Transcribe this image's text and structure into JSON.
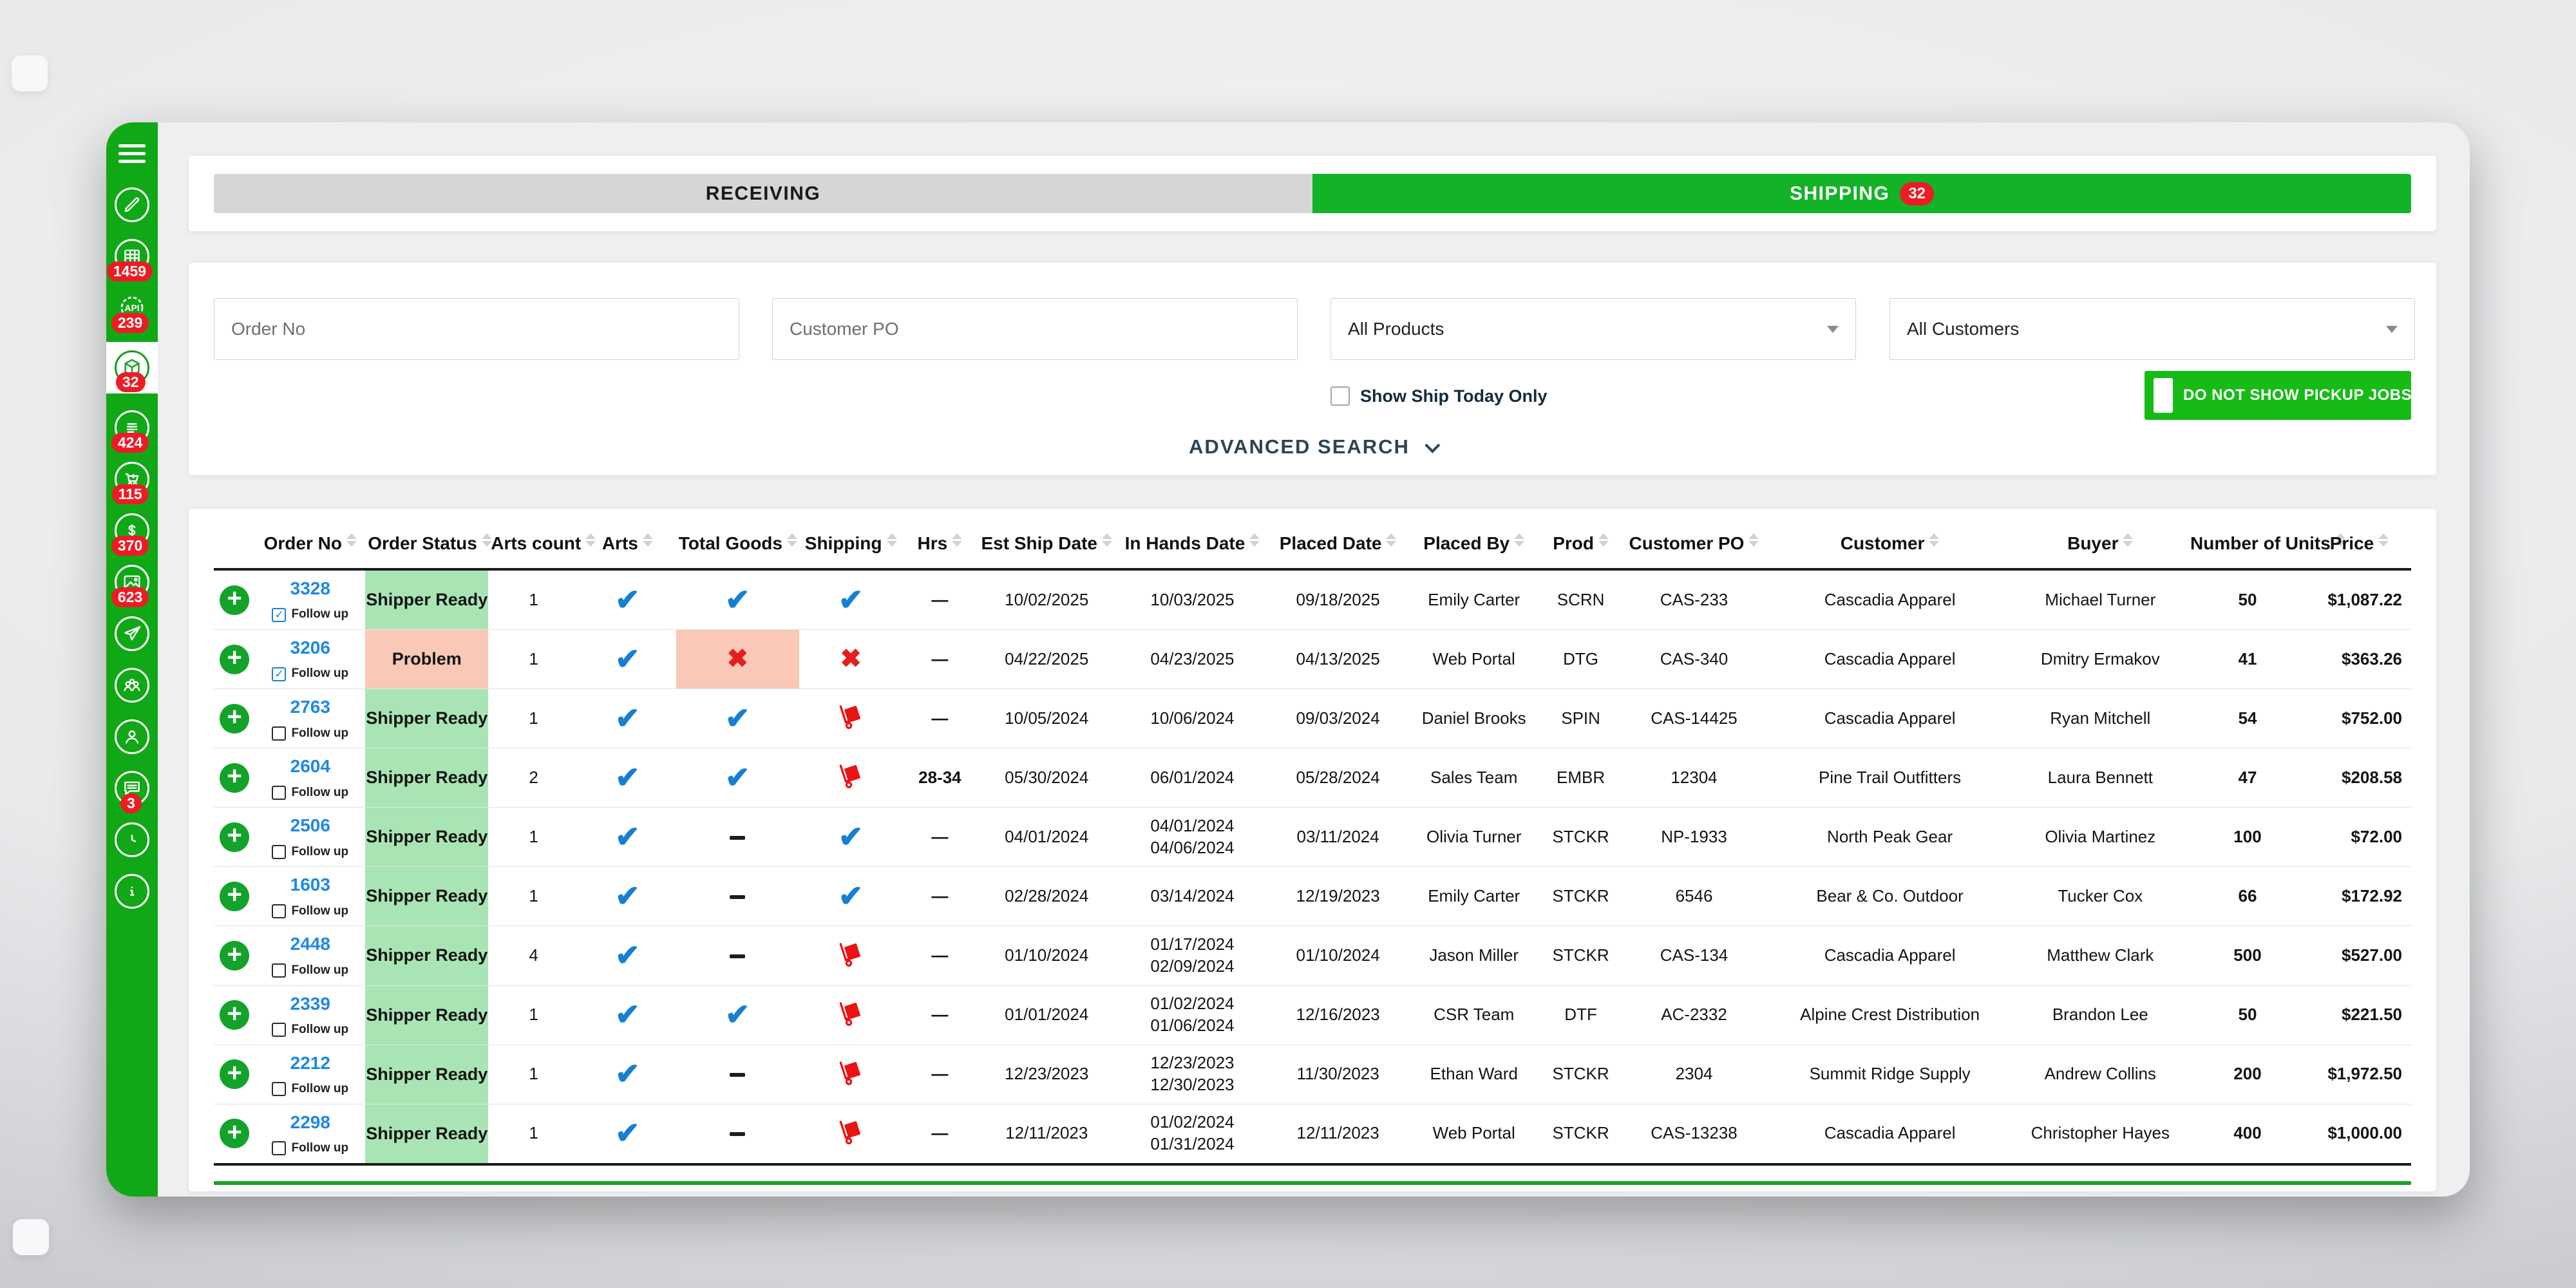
{
  "sidebar": {
    "items": [
      {
        "id": "menu",
        "icon": "menu-icon",
        "badge": null,
        "active": false
      },
      {
        "id": "edit",
        "icon": "pencil-icon",
        "badge": null,
        "active": false
      },
      {
        "id": "spreadsheet",
        "icon": "spreadsheet-icon",
        "badge": "1459",
        "active": false
      },
      {
        "id": "api",
        "icon": "api-gear-icon",
        "badge": "239",
        "active": false
      },
      {
        "id": "shipping",
        "icon": "package-icon",
        "badge": "32",
        "active": true
      },
      {
        "id": "invoices",
        "icon": "invoice-icon",
        "badge": "424",
        "active": false
      },
      {
        "id": "orders",
        "icon": "cart-icon",
        "badge": "115",
        "active": false
      },
      {
        "id": "billing",
        "icon": "dollar-icon",
        "badge": "370",
        "active": false
      },
      {
        "id": "artwork",
        "icon": "image-icon",
        "badge": "623",
        "active": false
      },
      {
        "id": "send",
        "icon": "paper-plane-icon",
        "badge": null,
        "active": false
      },
      {
        "id": "customers",
        "icon": "people-icon",
        "badge": null,
        "active": false
      },
      {
        "id": "account",
        "icon": "person-icon",
        "badge": null,
        "active": false
      },
      {
        "id": "messages",
        "icon": "chat-icon",
        "badge": "3",
        "active": false
      },
      {
        "id": "history",
        "icon": "clock-icon",
        "badge": null,
        "active": false
      },
      {
        "id": "info",
        "icon": "info-icon",
        "badge": null,
        "active": false
      }
    ]
  },
  "tabs": {
    "receiving_label": "RECEIVING",
    "shipping_label": "SHIPPING",
    "shipping_badge": "32"
  },
  "filters": {
    "order_no_placeholder": "Order No",
    "customer_po_placeholder": "Customer PO",
    "products_value": "All Products",
    "customers_value": "All Customers",
    "show_ship_today_label": "Show Ship Today Only",
    "show_ship_today_checked": false,
    "pickup_jobs_label": "DO NOT SHOW PICKUP JOBS",
    "advanced_search_label": "ADVANCED SEARCH"
  },
  "table": {
    "follow_up_label": "Follow up",
    "headers": [
      "Order No",
      "Order Status",
      "Arts count",
      "Arts",
      "Total Goods",
      "Shipping",
      "Hrs",
      "Est Ship Date",
      "In Hands Date",
      "Placed Date",
      "Placed By",
      "Prod",
      "Customer PO",
      "Customer",
      "Buyer",
      "Number of Units",
      "Price"
    ],
    "rows": [
      {
        "order_no": "3328",
        "follow_up": true,
        "status": "Shipper Ready",
        "arts_count": "1",
        "arts": "check",
        "total_goods": "check",
        "shipping": "check",
        "hrs": "—",
        "est_ship_date": "10/02/2025",
        "in_hands_date": [
          "10/03/2025"
        ],
        "placed_date": "09/18/2025",
        "placed_by": "Emily Carter",
        "prod": "SCRN",
        "customer_po": "CAS-233",
        "customer": "Cascadia Apparel",
        "buyer": "Michael Turner",
        "units": "50",
        "price": "$1,087.22"
      },
      {
        "order_no": "3206",
        "follow_up": true,
        "status": "Problem",
        "arts_count": "1",
        "arts": "check",
        "total_goods": "x",
        "shipping": "x",
        "hrs": "—",
        "est_ship_date": "04/22/2025",
        "in_hands_date": [
          "04/23/2025"
        ],
        "placed_date": "04/13/2025",
        "placed_by": "Web Portal",
        "prod": "DTG",
        "customer_po": "CAS-340",
        "customer": "Cascadia Apparel",
        "buyer": "Dmitry Ermakov",
        "units": "41",
        "price": "$363.26"
      },
      {
        "order_no": "2763",
        "follow_up": false,
        "status": "Shipper Ready",
        "arts_count": "1",
        "arts": "check",
        "total_goods": "check",
        "shipping": "cart",
        "hrs": "—",
        "est_ship_date": "10/05/2024",
        "in_hands_date": [
          "10/06/2024"
        ],
        "placed_date": "09/03/2024",
        "placed_by": "Daniel Brooks",
        "prod": "SPIN",
        "customer_po": "CAS-14425",
        "customer": "Cascadia Apparel",
        "buyer": "Ryan Mitchell",
        "units": "54",
        "price": "$752.00"
      },
      {
        "order_no": "2604",
        "follow_up": false,
        "status": "Shipper Ready",
        "arts_count": "2",
        "arts": "check",
        "total_goods": "check",
        "shipping": "cart",
        "hrs": "28-34",
        "est_ship_date": "05/30/2024",
        "in_hands_date": [
          "06/01/2024"
        ],
        "placed_date": "05/28/2024",
        "placed_by": "Sales Team",
        "prod": "EMBR",
        "customer_po": "12304",
        "customer": "Pine Trail Outfitters",
        "buyer": "Laura Bennett",
        "units": "47",
        "price": "$208.58"
      },
      {
        "order_no": "2506",
        "follow_up": false,
        "status": "Shipper Ready",
        "arts_count": "1",
        "arts": "check",
        "total_goods": "dash",
        "shipping": "check",
        "hrs": "—",
        "est_ship_date": "04/01/2024",
        "in_hands_date": [
          "04/01/2024",
          "04/06/2024"
        ],
        "placed_date": "03/11/2024",
        "placed_by": "Olivia Turner",
        "prod": "STCKR",
        "customer_po": "NP-1933",
        "customer": "North Peak Gear",
        "buyer": "Olivia Martinez",
        "units": "100",
        "price": "$72.00"
      },
      {
        "order_no": "1603",
        "follow_up": false,
        "status": "Shipper Ready",
        "arts_count": "1",
        "arts": "check",
        "total_goods": "dash",
        "shipping": "check",
        "hrs": "—",
        "est_ship_date": "02/28/2024",
        "in_hands_date": [
          "03/14/2024"
        ],
        "placed_date": "12/19/2023",
        "placed_by": "Emily Carter",
        "prod": "STCKR",
        "customer_po": "6546",
        "customer": "Bear & Co. Outdoor",
        "buyer": "Tucker Cox",
        "units": "66",
        "price": "$172.92"
      },
      {
        "order_no": "2448",
        "follow_up": false,
        "status": "Shipper Ready",
        "arts_count": "4",
        "arts": "check",
        "total_goods": "dash",
        "shipping": "cart",
        "hrs": "—",
        "est_ship_date": "01/10/2024",
        "in_hands_date": [
          "01/17/2024",
          "02/09/2024"
        ],
        "placed_date": "01/10/2024",
        "placed_by": "Jason Miller",
        "prod": "STCKR",
        "customer_po": "CAS-134",
        "customer": "Cascadia Apparel",
        "buyer": "Matthew Clark",
        "units": "500",
        "price": "$527.00"
      },
      {
        "order_no": "2339",
        "follow_up": false,
        "status": "Shipper Ready",
        "arts_count": "1",
        "arts": "check",
        "total_goods": "check",
        "shipping": "cart",
        "hrs": "—",
        "est_ship_date": "01/01/2024",
        "in_hands_date": [
          "01/02/2024",
          "01/06/2024"
        ],
        "placed_date": "12/16/2023",
        "placed_by": "CSR Team",
        "prod": "DTF",
        "customer_po": "AC-2332",
        "customer": "Alpine Crest Distribution",
        "buyer": "Brandon Lee",
        "units": "50",
        "price": "$221.50"
      },
      {
        "order_no": "2212",
        "follow_up": false,
        "status": "Shipper Ready",
        "arts_count": "1",
        "arts": "check",
        "total_goods": "dash",
        "shipping": "cart",
        "hrs": "—",
        "est_ship_date": "12/23/2023",
        "in_hands_date": [
          "12/23/2023",
          "12/30/2023"
        ],
        "placed_date": "11/30/2023",
        "placed_by": "Ethan Ward",
        "prod": "STCKR",
        "customer_po": "2304",
        "customer": "Summit Ridge Supply",
        "buyer": "Andrew Collins",
        "units": "200",
        "price": "$1,972.50"
      },
      {
        "order_no": "2298",
        "follow_up": false,
        "status": "Shipper Ready",
        "arts_count": "1",
        "arts": "check",
        "total_goods": "dash",
        "shipping": "cart",
        "hrs": "—",
        "est_ship_date": "12/11/2023",
        "in_hands_date": [
          "01/02/2024",
          "01/31/2024"
        ],
        "placed_date": "12/11/2023",
        "placed_by": "Web Portal",
        "prod": "STCKR",
        "customer_po": "CAS-13238",
        "customer": "Cascadia Apparel",
        "buyer": "Christopher Hayes",
        "units": "400",
        "price": "$1,000.00"
      }
    ]
  },
  "theme": {
    "sidebar_green": "#10a816",
    "tab_green": "#12b327",
    "button_green": "#16bb16",
    "badge_red": "#ed1b24",
    "tab_gray": "#d6d6d6",
    "status_ready_bg": "#a9e5b4",
    "status_problem_bg": "#f9c8b6",
    "check_blue": "#167fd2",
    "x_red": "#e51d1d",
    "link_blue": "#1e88e5",
    "green_divider": "#1ca227"
  }
}
